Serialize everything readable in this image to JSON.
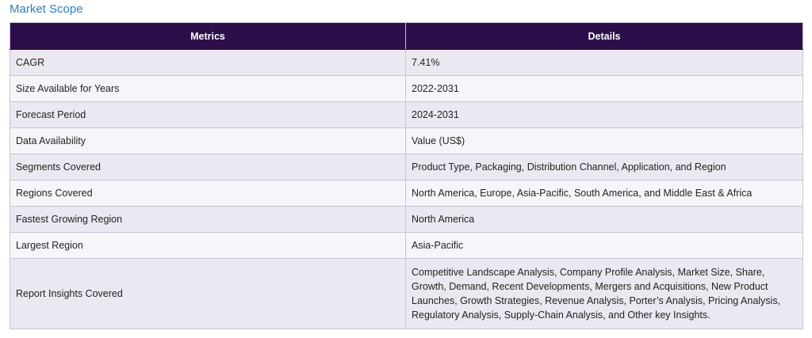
{
  "title": "Market Scope",
  "table": {
    "headers": [
      "Metrics",
      "Details"
    ],
    "rows": [
      {
        "metric": "CAGR",
        "details": "7.41%"
      },
      {
        "metric": "Size Available for Years",
        "details": "2022-2031"
      },
      {
        "metric": "Forecast Period",
        "details": "2024-2031"
      },
      {
        "metric": "Data Availability",
        "details": "Value (US$)"
      },
      {
        "metric": "Segments Covered",
        "details": "Product Type, Packaging, Distribution Channel, Application, and Region"
      },
      {
        "metric": "Regions Covered",
        "details": "North America, Europe, Asia-Pacific, South America, and Middle East & Africa"
      },
      {
        "metric": "Fastest Growing Region",
        "details": "North America"
      },
      {
        "metric": "Largest Region",
        "details": "Asia-Pacific"
      },
      {
        "metric": "Report Insights Covered",
        "details": "Competitive Landscape Analysis, Company Profile Analysis, Market Size, Share, Growth, Demand, Recent Developments, Mergers and Acquisitions, New Product Launches, Growth Strategies, Revenue Analysis, Porter’s Analysis, Pricing Analysis, Regulatory Analysis, Supply-Chain Analysis, and Other key Insights."
      }
    ]
  }
}
